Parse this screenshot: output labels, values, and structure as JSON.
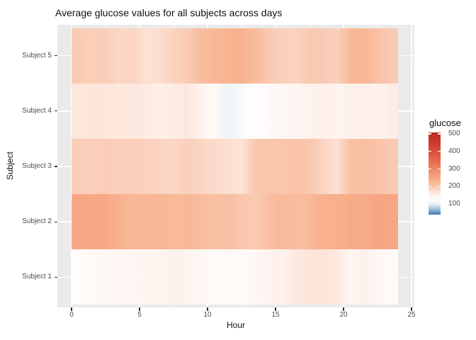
{
  "title": "Average glucose values for all subjects across days",
  "axes": {
    "x_label": "Hour",
    "y_label": "Subject",
    "x_ticks": [
      0,
      5,
      10,
      15,
      20,
      25
    ],
    "x_minor_ticks": [
      2.5,
      7.5,
      12.5,
      17.5,
      22.5
    ],
    "y_categories_top_to_bottom": [
      "Subject 5",
      "Subject 4",
      "Subject 3",
      "Subject 2",
      "Subject 1"
    ]
  },
  "legend": {
    "title": "glucose",
    "ticks": [
      500,
      400,
      300,
      200,
      100
    ],
    "value_domain": [
      40,
      508
    ]
  },
  "colors": {
    "background": "#ffffff",
    "panel_bg": "#eaeaea",
    "grid": "#ffffff",
    "axis_tick": "#333333",
    "tick_label": "#4d4d4d",
    "title_text": "#111111",
    "scale_anchors": [
      [
        40,
        "#3d77b0"
      ],
      [
        55,
        "#6d9dca"
      ],
      [
        75,
        "#a8c7e0"
      ],
      [
        95,
        "#dce9f2"
      ],
      [
        110,
        "#f5f8fb"
      ],
      [
        130,
        "#fffefe"
      ],
      [
        150,
        "#fef3ee"
      ],
      [
        175,
        "#fcdfd1"
      ],
      [
        200,
        "#f9c7ae"
      ],
      [
        225,
        "#f8b795"
      ],
      [
        250,
        "#f7a886"
      ],
      [
        275,
        "#f59775"
      ],
      [
        300,
        "#ef8663"
      ],
      [
        350,
        "#e4674c"
      ],
      [
        400,
        "#d94f3d"
      ],
      [
        450,
        "#cb392c"
      ],
      [
        500,
        "#bd2a21"
      ]
    ]
  },
  "chart_data": {
    "type": "heatmap",
    "title": "Average glucose values for all subjects across days",
    "xlabel": "Hour",
    "ylabel": "Subject",
    "fill_label": "glucose",
    "x_hours": [
      0,
      1,
      2,
      3,
      4,
      5,
      6,
      7,
      8,
      9,
      10,
      11,
      12,
      13,
      14,
      15,
      16,
      17,
      18,
      19,
      20,
      21,
      22,
      23
    ],
    "x_axis_range": [
      0,
      25
    ],
    "fill_domain": [
      40,
      508
    ],
    "legend_ticks": [
      100,
      200,
      300,
      400,
      500
    ],
    "rows_top_to_bottom": [
      {
        "name": "Subject 5",
        "values": [
          197,
          192,
          194,
          183,
          185,
          172,
          177,
          188,
          196,
          215,
          224,
          232,
          234,
          219,
          199,
          191,
          188,
          200,
          196,
          191,
          222,
          226,
          210,
          197
        ]
      },
      {
        "name": "Subject 4",
        "values": [
          166,
          168,
          166,
          164,
          164,
          161,
          154,
          160,
          164,
          150,
          138,
          105,
          118,
          130,
          135,
          144,
          146,
          151,
          152,
          150,
          152,
          155,
          150,
          157
        ]
      },
      {
        "name": "Subject 3",
        "values": [
          193,
          191,
          194,
          192,
          193,
          189,
          186,
          183,
          191,
          185,
          179,
          176,
          170,
          199,
          203,
          201,
          206,
          200,
          186,
          172,
          208,
          212,
          207,
          198
        ]
      },
      {
        "name": "Subject 2",
        "values": [
          252,
          250,
          249,
          235,
          222,
          223,
          227,
          219,
          223,
          215,
          210,
          213,
          200,
          197,
          211,
          222,
          214,
          222,
          236,
          238,
          246,
          244,
          256,
          252
        ]
      },
      {
        "name": "Subject 1",
        "values": [
          134,
          140,
          143,
          142,
          145,
          146,
          148,
          153,
          150,
          143,
          137,
          140,
          136,
          142,
          150,
          153,
          162,
          168,
          170,
          163,
          146,
          152,
          142,
          138
        ]
      }
    ]
  }
}
